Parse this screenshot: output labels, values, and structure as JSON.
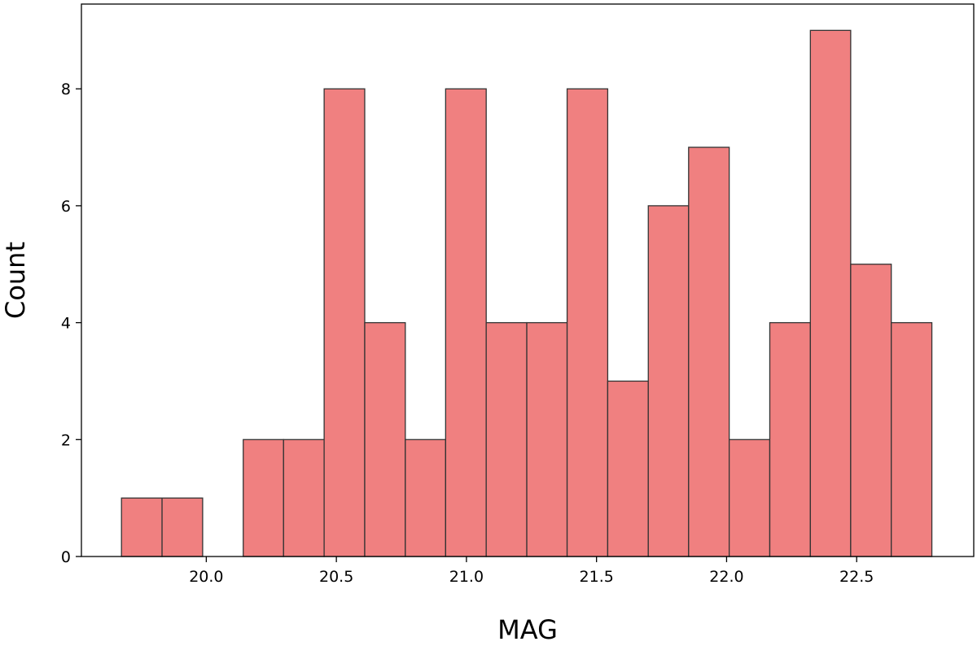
{
  "chart_data": {
    "type": "bar",
    "subtype": "histogram",
    "bins": [
      [
        19.674,
        19.83
      ],
      [
        19.83,
        19.986
      ],
      [
        19.986,
        20.142
      ],
      [
        20.142,
        20.297
      ],
      [
        20.297,
        20.453
      ],
      [
        20.453,
        20.609
      ],
      [
        20.609,
        20.765
      ],
      [
        20.765,
        20.92
      ],
      [
        20.92,
        21.076
      ],
      [
        21.076,
        21.232
      ],
      [
        21.232,
        21.387
      ],
      [
        21.387,
        21.543
      ],
      [
        21.543,
        21.699
      ],
      [
        21.699,
        21.854
      ],
      [
        21.854,
        22.01
      ],
      [
        22.01,
        22.166
      ],
      [
        22.166,
        22.322
      ],
      [
        22.322,
        22.477
      ],
      [
        22.477,
        22.633
      ],
      [
        22.633,
        22.789
      ]
    ],
    "values": [
      1,
      1,
      0,
      2,
      2,
      8,
      4,
      2,
      8,
      4,
      4,
      8,
      3,
      6,
      7,
      2,
      4,
      9,
      5,
      4
    ],
    "xlabel": "MAG",
    "ylabel": "Count",
    "xlim": [
      19.52,
      22.95
    ],
    "ylim": [
      0,
      9.45
    ],
    "xticks": [
      20.0,
      20.5,
      21.0,
      21.5,
      22.0,
      22.5
    ],
    "xtick_labels": [
      "20.0",
      "20.5",
      "21.0",
      "21.5",
      "22.0",
      "22.5"
    ],
    "yticks": [
      0,
      2,
      4,
      6,
      8
    ],
    "ytick_labels": [
      "0",
      "2",
      "4",
      "6",
      "8"
    ],
    "bar_color": "#f08080",
    "edge_color": "#333333",
    "grid": false
  }
}
